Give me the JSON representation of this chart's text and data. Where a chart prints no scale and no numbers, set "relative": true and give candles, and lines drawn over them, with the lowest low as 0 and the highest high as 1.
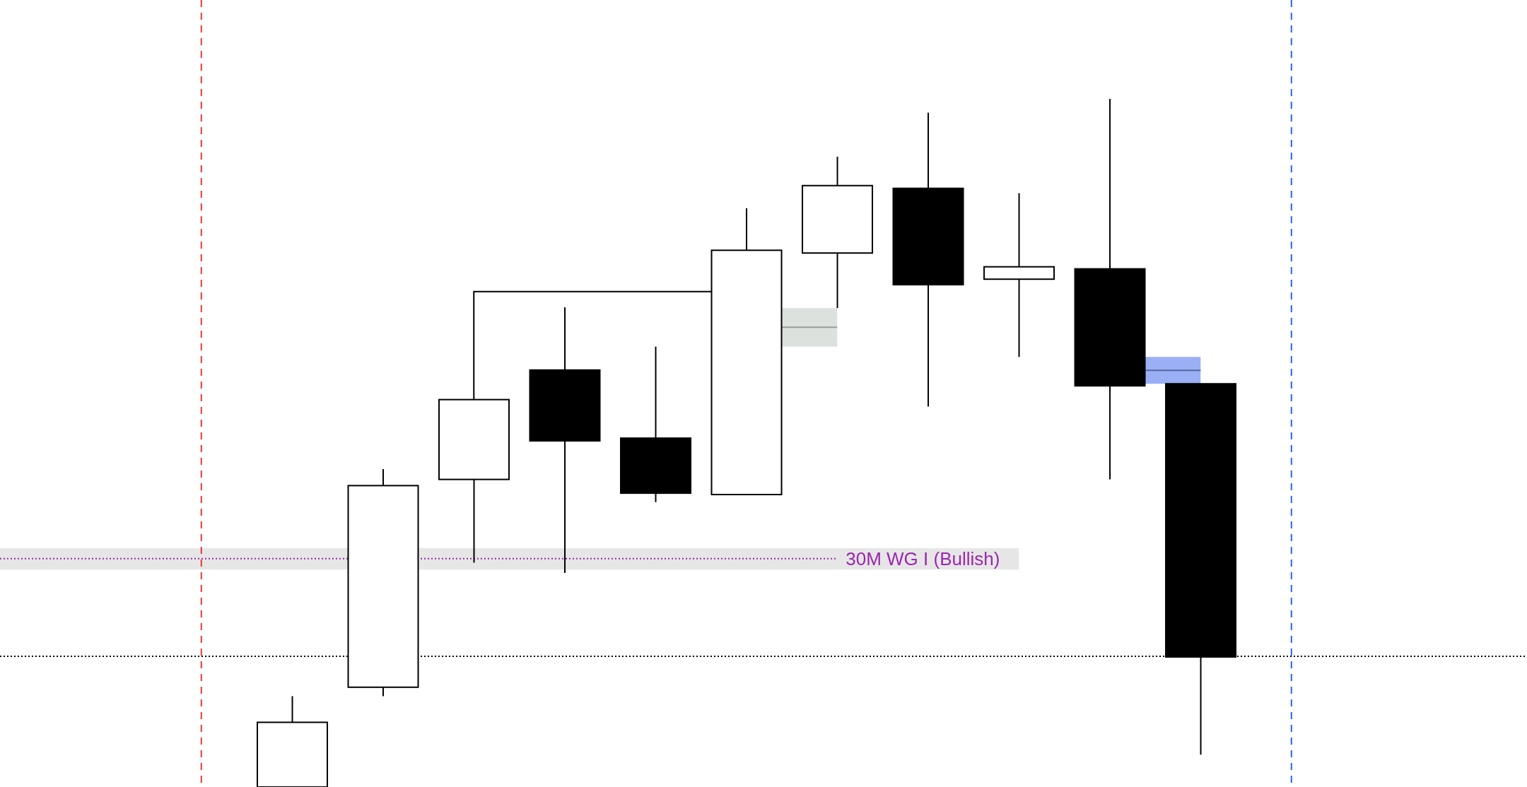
{
  "chart_data": {
    "type": "candlestick",
    "relative": true,
    "tick_labels": false,
    "color": "#000000",
    "categories": [
      null,
      null,
      null,
      null,
      null,
      null,
      null,
      null,
      null,
      null,
      null
    ],
    "ohlc": [
      [
        0,
        0.132,
        0,
        0.094
      ],
      [
        0.145,
        0.462,
        0.132,
        0.438
      ],
      [
        0.447,
        0.563,
        0.326,
        0.563
      ],
      [
        0.606,
        0.697,
        0.311,
        0.503
      ],
      [
        0.507,
        0.64,
        0.414,
        0.427
      ],
      [
        0.425,
        0.841,
        0.425,
        0.78
      ],
      [
        0.776,
        0.916,
        0.696,
        0.874
      ],
      [
        0.87,
        0.98,
        0.553,
        0.73
      ],
      [
        0.738,
        0.863,
        0.625,
        0.756
      ],
      [
        0.753,
        1,
        0.447,
        0.583
      ],
      [
        0.586,
        0.586,
        0.047,
        0.189
      ]
    ],
    "ref_lines": [
      {
        "axis": "y",
        "value": 0.19,
        "color": "#000000",
        "line_style": "dotted"
      },
      {
        "axis": "y",
        "value": 0.332,
        "label": "30M WG I (Bullish)",
        "color": "#9c27b0",
        "line_style": "dotted"
      }
    ],
    "bands": [
      {
        "axis": "y",
        "from": 0.316,
        "to": 0.347,
        "color": "#e6e6e6"
      }
    ]
  }
}
